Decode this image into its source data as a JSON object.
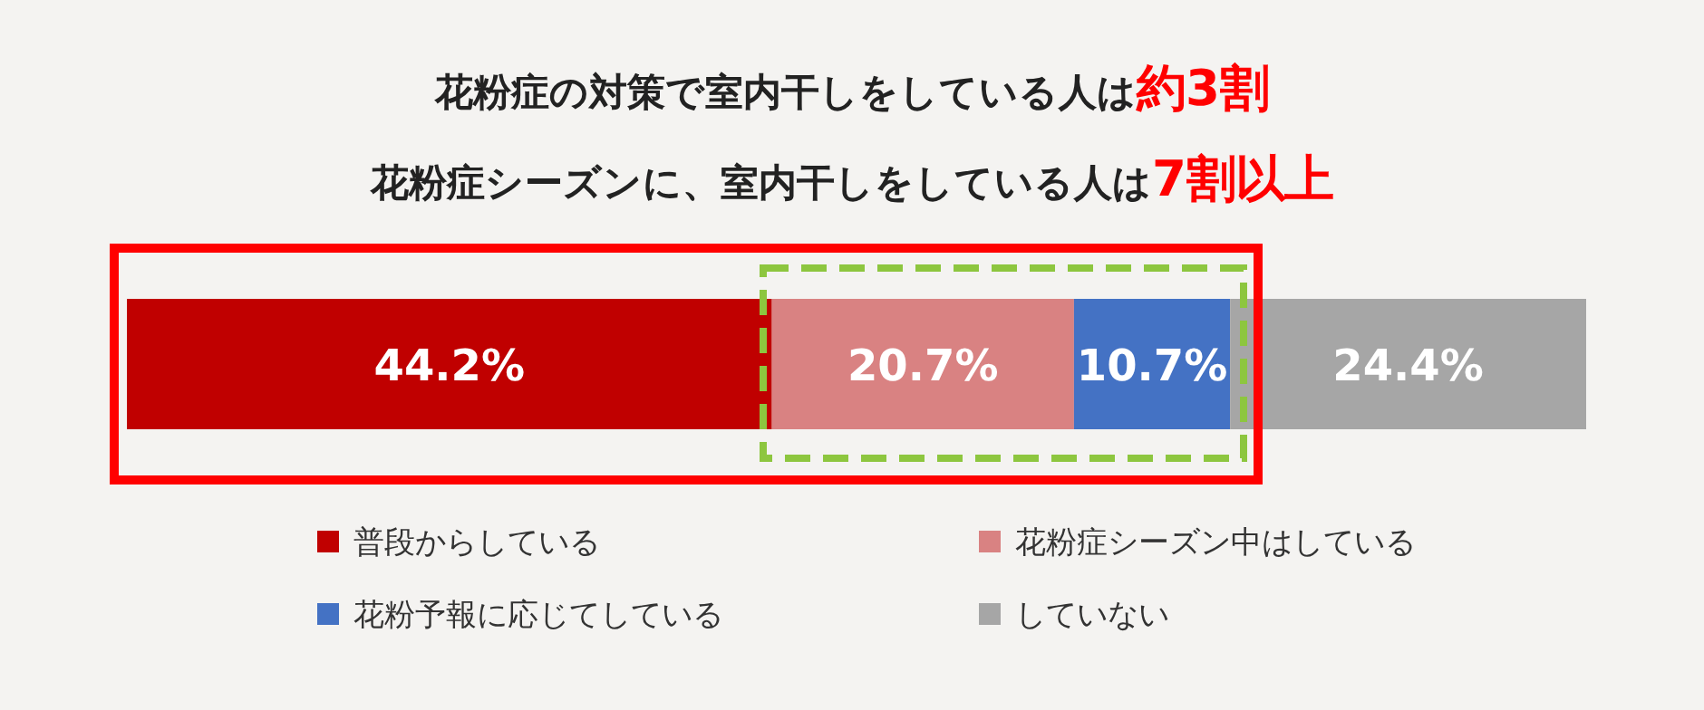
{
  "chart_data": {
    "type": "bar",
    "orientation": "horizontal",
    "stacked": true,
    "title": "花粉症の対策で室内干しをしている人は**約3割**",
    "subtitle": "花粉症シーズンに、室内干しをしている人は**7割以上**",
    "categories": [
      null
    ],
    "xlim": [
      0,
      100
    ],
    "legend": "bottom",
    "series": [
      {
        "name": "普段からしている",
        "color": "#c00000",
        "values": [
          44.2
        ],
        "value_labels": [
          "44.2%"
        ]
      },
      {
        "name": "花粉症シーズン中はしている",
        "color": "#d98282",
        "values": [
          20.7
        ],
        "value_labels": [
          "20.7%"
        ]
      },
      {
        "name": "花粉予報に応じてしている",
        "color": "#4472c4",
        "values": [
          10.7
        ],
        "value_labels": [
          "10.7%"
        ]
      },
      {
        "name": "していない",
        "color": "#a6a6a6",
        "values": [
          24.4
        ],
        "value_labels": [
          "24.4%"
        ]
      }
    ]
  }
}
